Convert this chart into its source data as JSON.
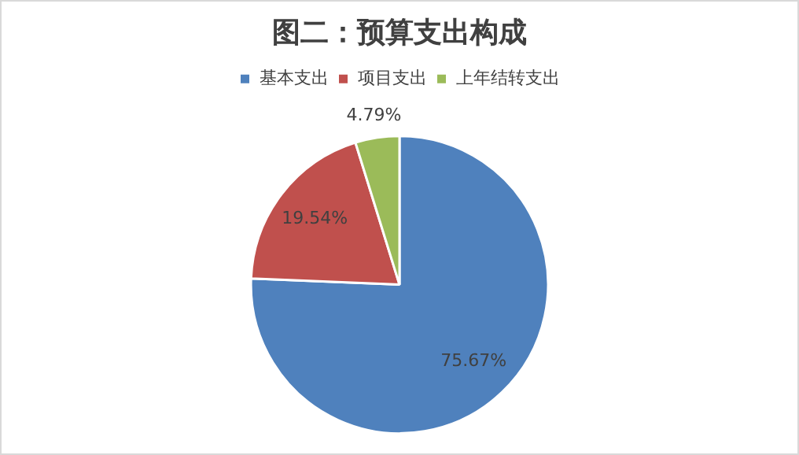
{
  "chart_data": {
    "type": "pie",
    "title": "图二：预算支出构成",
    "categories": [
      "基本支出",
      "项目支出",
      "上年结转支出"
    ],
    "values": [
      75.67,
      19.54,
      4.79
    ],
    "colors": [
      "#4f81bd",
      "#c0504d",
      "#9bbb59"
    ],
    "value_labels": [
      "75.67%",
      "19.54%",
      "4.79%"
    ],
    "legend": "top"
  }
}
